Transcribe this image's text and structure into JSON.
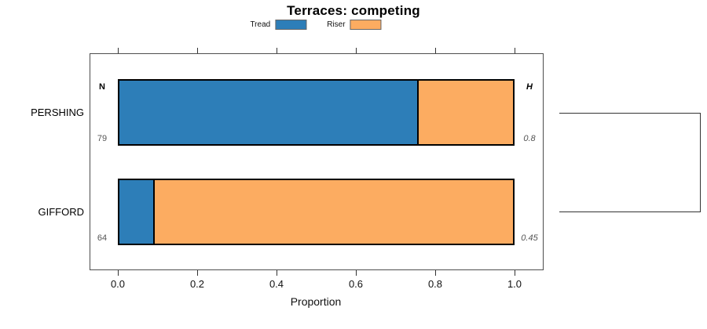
{
  "chart_data": {
    "type": "bar",
    "subtype": "horizontal-stacked-proportion",
    "title": "Terraces: competing",
    "xlabel": "Proportion",
    "xlim": [
      0,
      1
    ],
    "xticks": [
      0,
      0.2,
      0.4,
      0.6,
      0.8,
      1
    ],
    "xtick_labels": [
      "0.0",
      "0.2",
      "0.4",
      "0.6",
      "0.8",
      "1.0"
    ],
    "grid": false,
    "legend_position": "top-center",
    "categories": [
      "PERSHING",
      "GIFFORD"
    ],
    "series": [
      {
        "name": "Tread",
        "color": "#2d7eb8",
        "values": [
          0.76,
          0.09
        ]
      },
      {
        "name": "Riser",
        "color": "#fcac61",
        "values": [
          0.24,
          0.91
        ]
      }
    ],
    "annotations": {
      "n_header": "N",
      "h_header": "H",
      "n_values": [
        "79",
        "64"
      ],
      "h_values": [
        "0.8",
        "0.45"
      ]
    },
    "dendrogram": {
      "description": "two-leaf cluster bracket at right joining PERSHING and GIFFORD"
    }
  }
}
